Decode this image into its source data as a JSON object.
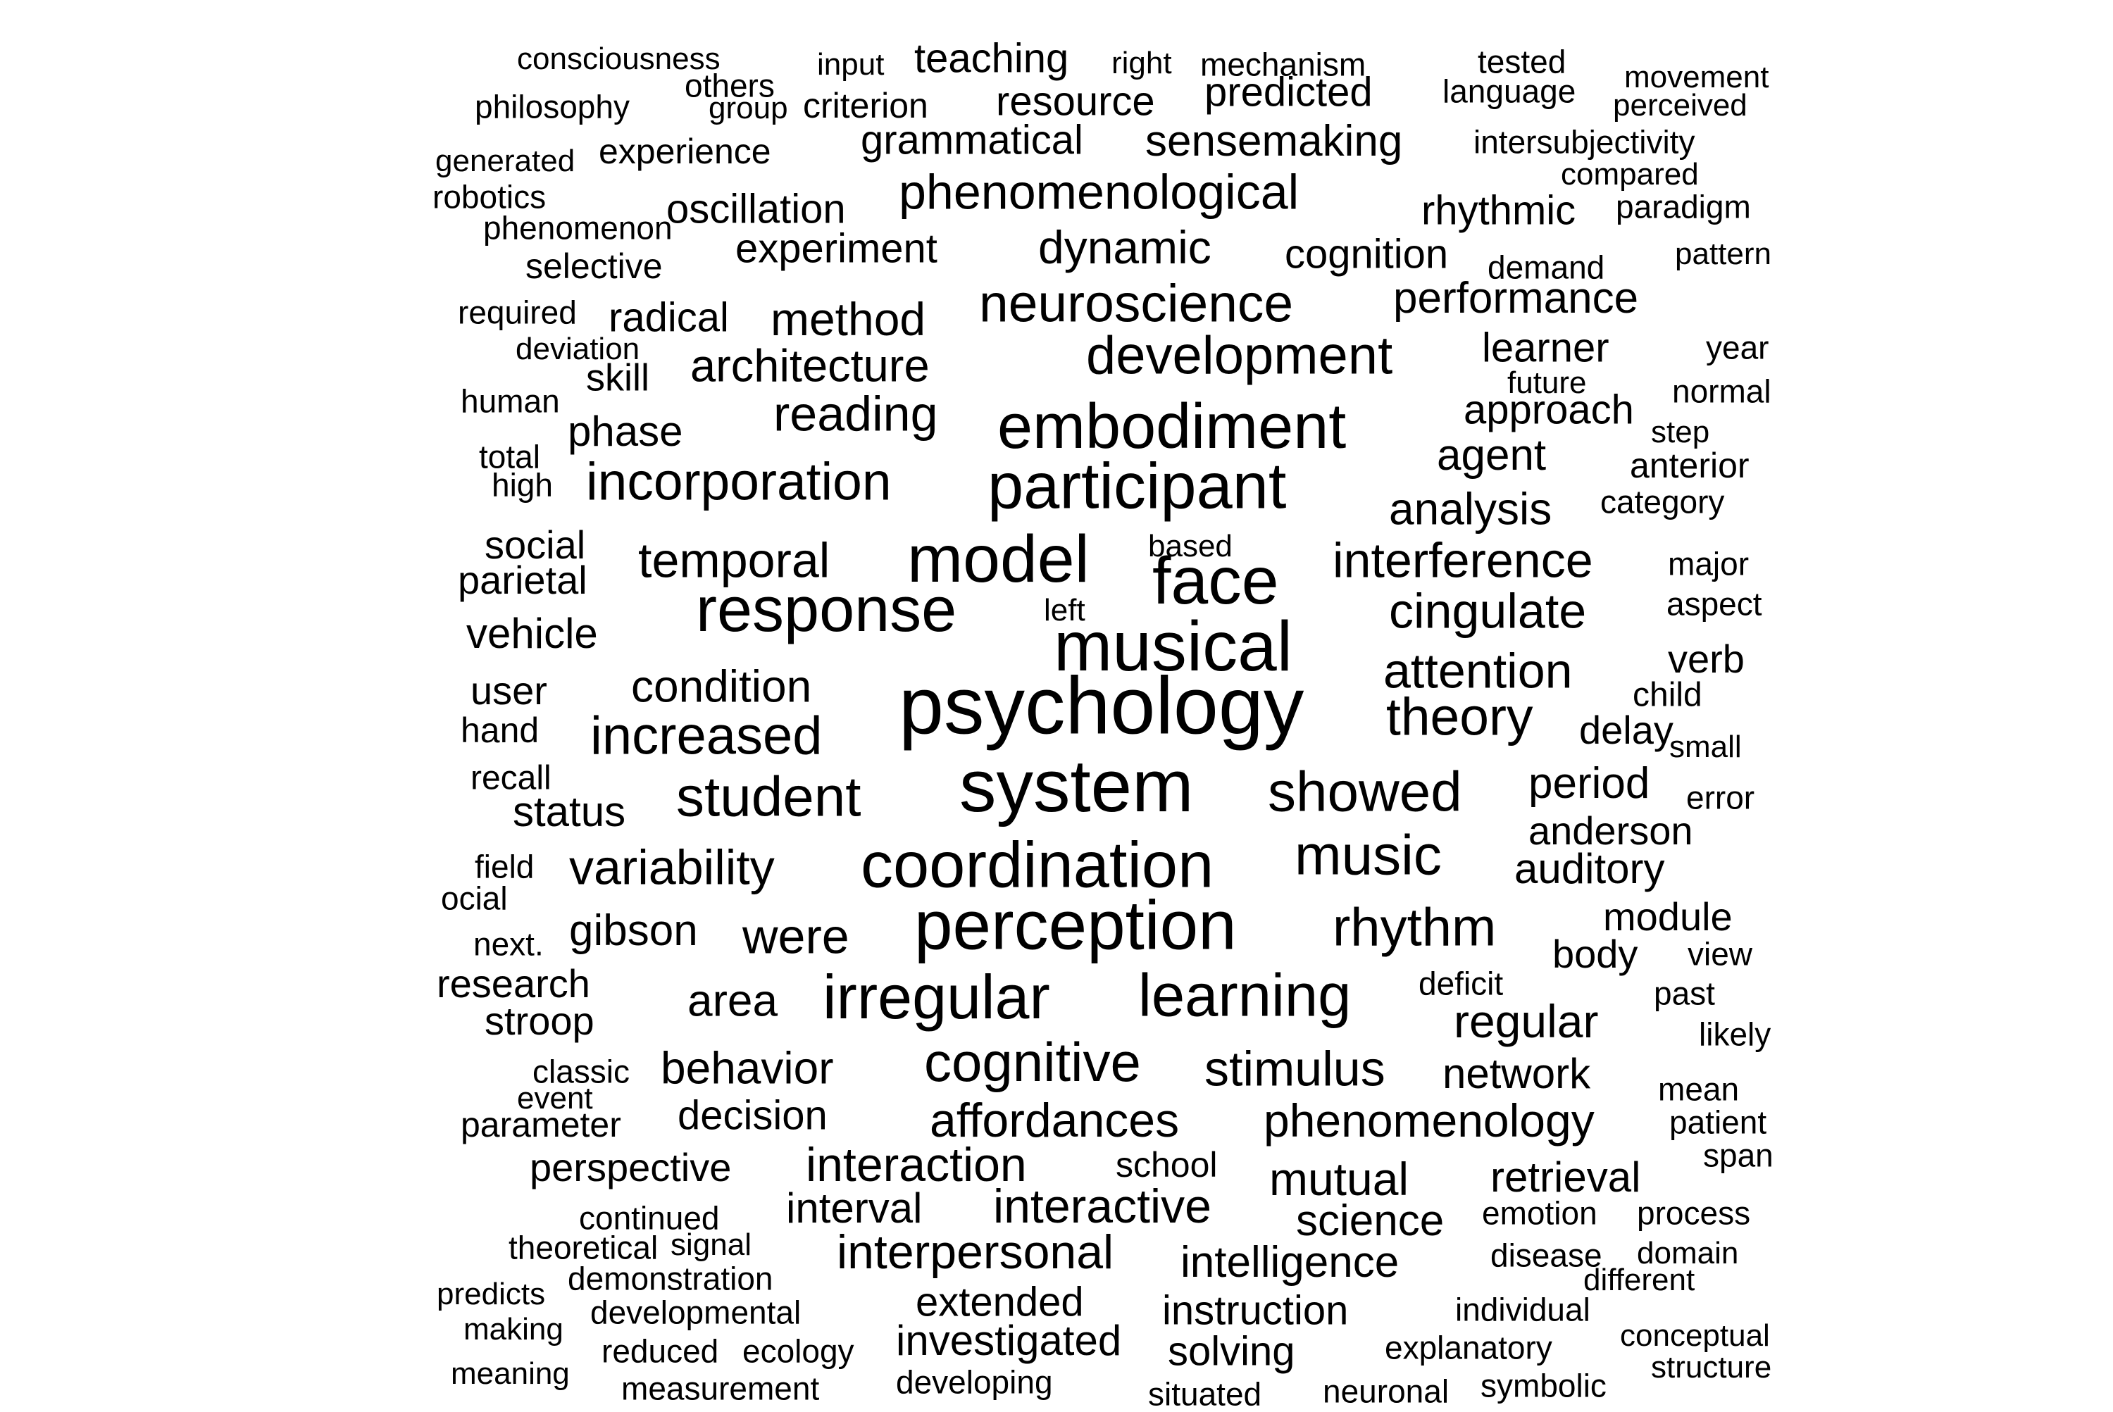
{
  "word_cloud": {
    "text_color": "#000000",
    "background_color": "#ffffff",
    "words": [
      {
        "text": "psychology",
        "weight": 60
      },
      {
        "text": "system",
        "weight": 54
      },
      {
        "text": "musical",
        "weight": 52
      },
      {
        "text": "perception",
        "weight": 52
      },
      {
        "text": "coordination",
        "weight": 50
      },
      {
        "text": "participant",
        "weight": 50
      },
      {
        "text": "model",
        "weight": 48
      },
      {
        "text": "face",
        "weight": 48
      },
      {
        "text": "response",
        "weight": 48
      },
      {
        "text": "irregular",
        "weight": 46
      },
      {
        "text": "embodiment",
        "weight": 46
      },
      {
        "text": "learning",
        "weight": 44
      },
      {
        "text": "showed",
        "weight": 42
      },
      {
        "text": "student",
        "weight": 42
      },
      {
        "text": "music",
        "weight": 42
      },
      {
        "text": "cognitive",
        "weight": 42
      },
      {
        "text": "development",
        "weight": 40
      },
      {
        "text": "rhythm",
        "weight": 40
      },
      {
        "text": "increased",
        "weight": 40
      },
      {
        "text": "incorporation",
        "weight": 40
      },
      {
        "text": "neuroscience",
        "weight": 40
      },
      {
        "text": "theory",
        "weight": 38
      },
      {
        "text": "phenomenological",
        "weight": 36
      },
      {
        "text": "temporal",
        "weight": 36
      },
      {
        "text": "reading",
        "weight": 36
      },
      {
        "text": "interference",
        "weight": 36
      },
      {
        "text": "stimulus",
        "weight": 36
      },
      {
        "text": "attention",
        "weight": 36
      },
      {
        "text": "cingulate",
        "weight": 36
      },
      {
        "text": "were",
        "weight": 36
      },
      {
        "text": "variability",
        "weight": 36
      },
      {
        "text": "affordances",
        "weight": 34
      },
      {
        "text": "interaction",
        "weight": 34
      },
      {
        "text": "interpersonal",
        "weight": 34
      },
      {
        "text": "dynamic",
        "weight": 34
      },
      {
        "text": "phenomenology",
        "weight": 34
      },
      {
        "text": "architecture",
        "weight": 34
      },
      {
        "text": "interactive",
        "weight": 34
      },
      {
        "text": "regular",
        "weight": 34
      },
      {
        "text": "mutual",
        "weight": 34
      },
      {
        "text": "analysis",
        "weight": 34
      },
      {
        "text": "area",
        "weight": 34
      },
      {
        "text": "behavior",
        "weight": 34
      },
      {
        "text": "method",
        "weight": 34
      },
      {
        "text": "condition",
        "weight": 32
      },
      {
        "text": "sensemaking",
        "weight": 32
      },
      {
        "text": "agent",
        "weight": 32
      },
      {
        "text": "gibson",
        "weight": 32
      },
      {
        "text": "network",
        "weight": 32
      },
      {
        "text": "science",
        "weight": 32
      },
      {
        "text": "investigated",
        "weight": 32
      },
      {
        "text": "intelligence",
        "weight": 32
      },
      {
        "text": "performance",
        "weight": 32
      },
      {
        "text": "period",
        "weight": 32
      },
      {
        "text": "auditory",
        "weight": 32
      },
      {
        "text": "retrieval",
        "weight": 30
      },
      {
        "text": "approach",
        "weight": 30
      },
      {
        "text": "phase",
        "weight": 30
      },
      {
        "text": "resource",
        "weight": 30
      },
      {
        "text": "grammatical",
        "weight": 30
      },
      {
        "text": "decision",
        "weight": 30
      },
      {
        "text": "interval",
        "weight": 30
      },
      {
        "text": "rhythmic",
        "weight": 30
      },
      {
        "text": "predicted",
        "weight": 30
      },
      {
        "text": "experiment",
        "weight": 30
      },
      {
        "text": "cognition",
        "weight": 30
      },
      {
        "text": "oscillation",
        "weight": 30
      },
      {
        "text": "instruction",
        "weight": 30
      },
      {
        "text": "solving",
        "weight": 30
      },
      {
        "text": "teaching",
        "weight": 30
      },
      {
        "text": "status",
        "weight": 30
      },
      {
        "text": "vehicle",
        "weight": 30
      },
      {
        "text": "learner",
        "weight": 30
      },
      {
        "text": "anderson",
        "weight": 30
      },
      {
        "text": "extended",
        "weight": 30
      },
      {
        "text": "radical",
        "weight": 30
      },
      {
        "text": "verb",
        "weight": 30
      },
      {
        "text": "body",
        "weight": 30
      },
      {
        "text": "module",
        "weight": 30
      },
      {
        "text": "perspective",
        "weight": 28
      },
      {
        "text": "delay",
        "weight": 28
      },
      {
        "text": "social",
        "weight": 28
      },
      {
        "text": "research",
        "weight": 28
      },
      {
        "text": "parietal",
        "weight": 28
      },
      {
        "text": "stroop",
        "weight": 28
      },
      {
        "text": "user",
        "weight": 28
      },
      {
        "text": "skill",
        "weight": 28
      },
      {
        "text": "parameter",
        "weight": 26
      },
      {
        "text": "experience",
        "weight": 26
      },
      {
        "text": "anterior",
        "weight": 26
      },
      {
        "text": "selective",
        "weight": 26
      },
      {
        "text": "hand",
        "weight": 26
      },
      {
        "text": "criterion",
        "weight": 26
      },
      {
        "text": "school",
        "weight": 26
      },
      {
        "text": "child",
        "weight": 26
      },
      {
        "text": "recall",
        "weight": 26
      },
      {
        "text": "philosophy",
        "weight": 24
      },
      {
        "text": "language",
        "weight": 24
      },
      {
        "text": "mechanism",
        "weight": 24
      },
      {
        "text": "others",
        "weight": 24
      },
      {
        "text": "intersubjectivity",
        "weight": 24
      },
      {
        "text": "paradigm",
        "weight": 24
      },
      {
        "text": "robotics",
        "weight": 24
      },
      {
        "text": "phenomenon",
        "weight": 24
      },
      {
        "text": "required",
        "weight": 24
      },
      {
        "text": "human",
        "weight": 24
      },
      {
        "text": "explanatory",
        "weight": 24
      },
      {
        "text": "developing",
        "weight": 24
      },
      {
        "text": "measurement",
        "weight": 24
      },
      {
        "text": "reduced",
        "weight": 24
      },
      {
        "text": "ecology",
        "weight": 24
      },
      {
        "text": "developmental",
        "weight": 24
      },
      {
        "text": "demonstration",
        "weight": 24
      },
      {
        "text": "theoretical",
        "weight": 24
      },
      {
        "text": "continued",
        "weight": 24
      },
      {
        "text": "situated",
        "weight": 24
      },
      {
        "text": "neuronal",
        "weight": 24
      },
      {
        "text": "symbolic",
        "weight": 24
      },
      {
        "text": "individual",
        "weight": 24
      },
      {
        "text": "disease",
        "weight": 24
      },
      {
        "text": "emotion",
        "weight": 24
      },
      {
        "text": "process",
        "weight": 24
      },
      {
        "text": "classic",
        "weight": 24
      },
      {
        "text": "mean",
        "weight": 24
      },
      {
        "text": "patient",
        "weight": 24
      },
      {
        "text": "deficit",
        "weight": 24
      },
      {
        "text": "tested",
        "weight": 24
      },
      {
        "text": "demand",
        "weight": 24
      },
      {
        "text": "category",
        "weight": 24
      },
      {
        "text": "normal",
        "weight": 24
      },
      {
        "text": "year",
        "weight": 24
      },
      {
        "text": "major",
        "weight": 24
      },
      {
        "text": "aspect",
        "weight": 24
      },
      {
        "text": "error",
        "weight": 24
      },
      {
        "text": "likely",
        "weight": 24
      },
      {
        "text": "past",
        "weight": 24
      },
      {
        "text": "view",
        "weight": 24
      },
      {
        "text": "span",
        "weight": 24
      },
      {
        "text": "total",
        "weight": 24
      },
      {
        "text": "high",
        "weight": 24
      },
      {
        "text": "field",
        "weight": 24
      },
      {
        "text": "ocial",
        "weight": 24
      },
      {
        "text": "next.",
        "weight": 24
      },
      {
        "text": "making",
        "weight": 22
      },
      {
        "text": "meaning",
        "weight": 22
      },
      {
        "text": "predicts",
        "weight": 22
      },
      {
        "text": "conceptual",
        "weight": 22
      },
      {
        "text": "domain",
        "weight": 22
      },
      {
        "text": "structure",
        "weight": 22
      },
      {
        "text": "different",
        "weight": 22
      },
      {
        "text": "consciousness",
        "weight": 22
      },
      {
        "text": "movement",
        "weight": 22
      },
      {
        "text": "perceived",
        "weight": 22
      },
      {
        "text": "compared",
        "weight": 22
      },
      {
        "text": "generated",
        "weight": 22
      },
      {
        "text": "input",
        "weight": 22
      },
      {
        "text": "right",
        "weight": 22
      },
      {
        "text": "group",
        "weight": 22
      },
      {
        "text": "deviation",
        "weight": 22
      },
      {
        "text": "future",
        "weight": 22
      },
      {
        "text": "step",
        "weight": 22
      },
      {
        "text": "pattern",
        "weight": 22
      },
      {
        "text": "small",
        "weight": 22
      },
      {
        "text": "based",
        "weight": 22
      },
      {
        "text": "left",
        "weight": 22
      },
      {
        "text": "event",
        "weight": 22
      },
      {
        "text": "signal",
        "weight": 22
      }
    ]
  }
}
